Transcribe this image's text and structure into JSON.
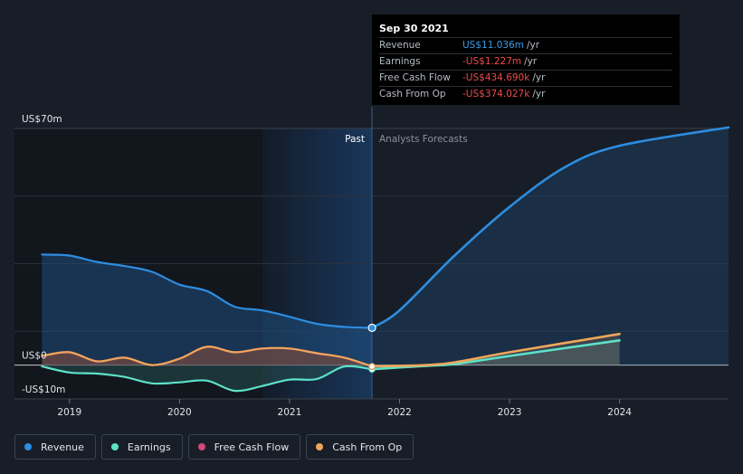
{
  "chart_data": {
    "type": "area",
    "x_unit": "year",
    "y_unit": "US$m",
    "xlim": [
      2018.5,
      2024.99
    ],
    "ylim": [
      -10,
      70
    ],
    "y_ticks": [
      {
        "value": 70,
        "label": "US$70m"
      },
      {
        "value": 0,
        "label": "US$0"
      },
      {
        "value": -10,
        "label": "-US$10m"
      }
    ],
    "x_ticks": [
      {
        "value": 2019,
        "label": "2019"
      },
      {
        "value": 2020,
        "label": "2020"
      },
      {
        "value": 2021,
        "label": "2021"
      },
      {
        "value": 2022,
        "label": "2022"
      },
      {
        "value": 2023,
        "label": "2023"
      },
      {
        "value": 2024,
        "label": "2024"
      }
    ],
    "divider_x": 2021.75,
    "past_label": "Past",
    "forecast_label": "Analysts Forecasts",
    "series": [
      {
        "name": "Revenue",
        "color": "#2d8de0",
        "past": [
          [
            2018.75,
            32.7
          ],
          [
            2019.0,
            32.4
          ],
          [
            2019.25,
            30.5
          ],
          [
            2019.5,
            29.3
          ],
          [
            2019.75,
            27.6
          ],
          [
            2020.0,
            23.8
          ],
          [
            2020.25,
            21.9
          ],
          [
            2020.5,
            17.3
          ],
          [
            2020.75,
            16.2
          ],
          [
            2021.0,
            14.3
          ],
          [
            2021.25,
            12.2
          ],
          [
            2021.5,
            11.3
          ],
          [
            2021.75,
            11.036
          ]
        ],
        "forecast": [
          [
            2021.75,
            11.036
          ],
          [
            2022.0,
            16.2
          ],
          [
            2022.5,
            32.4
          ],
          [
            2023.0,
            46.8
          ],
          [
            2023.5,
            58.5
          ],
          [
            2024.0,
            64.9
          ],
          [
            2024.99,
            70.3
          ]
        ]
      },
      {
        "name": "Earnings",
        "color": "#5de2c8",
        "past": [
          [
            2018.75,
            -0.4
          ],
          [
            2019.0,
            -2.2
          ],
          [
            2019.25,
            -2.5
          ],
          [
            2019.5,
            -3.5
          ],
          [
            2019.75,
            -5.4
          ],
          [
            2020.0,
            -5.1
          ],
          [
            2020.25,
            -4.6
          ],
          [
            2020.5,
            -7.6
          ],
          [
            2020.75,
            -6.2
          ],
          [
            2021.0,
            -4.3
          ],
          [
            2021.25,
            -4.1
          ],
          [
            2021.5,
            -0.4
          ],
          [
            2021.75,
            -1.227
          ]
        ],
        "forecast": [
          [
            2021.75,
            -1.227
          ],
          [
            2022.0,
            -0.7
          ],
          [
            2022.25,
            -0.2
          ],
          [
            2022.5,
            0.3
          ],
          [
            2023.0,
            2.7
          ],
          [
            2024.0,
            7.3
          ]
        ]
      },
      {
        "name": "Free Cash Flow",
        "color": "#d04a7a",
        "past": [
          [
            2018.75,
            2.7
          ],
          [
            2019.0,
            3.8
          ],
          [
            2019.25,
            1.1
          ],
          [
            2019.5,
            2.2
          ],
          [
            2019.75,
            0.0
          ],
          [
            2020.0,
            1.9
          ],
          [
            2020.25,
            5.4
          ],
          [
            2020.5,
            3.8
          ],
          [
            2020.75,
            4.9
          ],
          [
            2021.0,
            4.9
          ],
          [
            2021.25,
            3.5
          ],
          [
            2021.5,
            2.2
          ],
          [
            2021.75,
            -0.435
          ]
        ],
        "forecast": []
      },
      {
        "name": "Cash From Op",
        "color": "#f0a65a",
        "past": [
          [
            2018.75,
            2.7
          ],
          [
            2019.0,
            3.8
          ],
          [
            2019.25,
            1.1
          ],
          [
            2019.5,
            2.2
          ],
          [
            2019.75,
            0.0
          ],
          [
            2020.0,
            1.9
          ],
          [
            2020.25,
            5.4
          ],
          [
            2020.5,
            3.8
          ],
          [
            2020.75,
            4.9
          ],
          [
            2021.0,
            4.9
          ],
          [
            2021.25,
            3.5
          ],
          [
            2021.5,
            2.2
          ],
          [
            2021.75,
            -0.374
          ]
        ],
        "forecast": [
          [
            2021.75,
            -0.374
          ],
          [
            2022.0,
            -0.2
          ],
          [
            2022.25,
            0.0
          ],
          [
            2022.5,
            0.8
          ],
          [
            2023.0,
            3.8
          ],
          [
            2024.0,
            9.2
          ]
        ]
      }
    ]
  },
  "tooltip": {
    "date": "Sep 30 2021",
    "rows": [
      {
        "label": "Revenue",
        "value": "US$11.036m",
        "unit": "/yr"
      },
      {
        "label": "Earnings",
        "value": "-US$1.227m",
        "unit": "/yr"
      },
      {
        "label": "Free Cash Flow",
        "value": "-US$434.690k",
        "unit": "/yr"
      },
      {
        "label": "Cash From Op",
        "value": "-US$374.027k",
        "unit": "/yr"
      }
    ]
  },
  "legend": [
    {
      "label": "Revenue",
      "color": "#2d8de0"
    },
    {
      "label": "Earnings",
      "color": "#5de2c8"
    },
    {
      "label": "Free Cash Flow",
      "color": "#d04a7a"
    },
    {
      "label": "Cash From Op",
      "color": "#f0a65a"
    }
  ]
}
